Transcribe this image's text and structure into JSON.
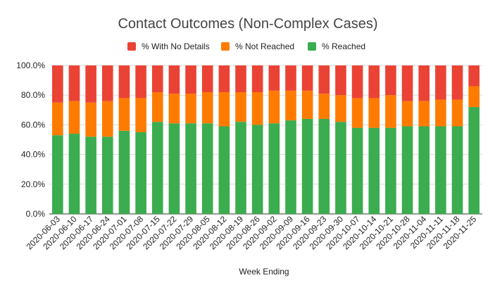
{
  "chart_data": {
    "type": "bar",
    "stacked": true,
    "title": "Contact Outcomes (Non-Complex Cases)",
    "xlabel": "Week Ending",
    "ylabel": "",
    "ylim": [
      0,
      100
    ],
    "yticks": [
      0,
      20,
      40,
      60,
      80,
      100
    ],
    "ytick_labels": [
      "0.0%",
      "20.0%",
      "40.0%",
      "60.0%",
      "80.0%",
      "100.0%"
    ],
    "grid": true,
    "legend_position": "top",
    "categories": [
      "2020-06-03",
      "2020-06-10",
      "2020-06-17",
      "2020-06-24",
      "2020-07-01",
      "2020-07-08",
      "2020-07-15",
      "2020-07-22",
      "2020-07-29",
      "2020-08-05",
      "2020-08-12",
      "2020-08-19",
      "2020-08-26",
      "2020-09-02",
      "2020-09-09",
      "2020-09-16",
      "2020-09-23",
      "2020-09-30",
      "2020-10-07",
      "2020-10-14",
      "2020-10-21",
      "2020-10-28",
      "2020-11-04",
      "2020-11-11",
      "2020-11-18",
      "2020-11-25"
    ],
    "series": [
      {
        "name": "% Reached",
        "color": "#3bac4f",
        "values": [
          53,
          54,
          52,
          52,
          56,
          55,
          62,
          61,
          61,
          61,
          59,
          62,
          60,
          61,
          63,
          64,
          64,
          62,
          58,
          58,
          58,
          59,
          59,
          59,
          59,
          72
        ]
      },
      {
        "name": "% Not Reached",
        "color": "#ff7b00",
        "values": [
          22,
          22,
          23,
          24,
          22,
          23,
          20,
          20,
          20,
          21,
          23,
          20,
          22,
          22,
          20,
          19,
          17,
          18,
          20,
          20,
          22,
          17,
          17,
          18,
          18,
          14
        ]
      },
      {
        "name": "% With No Details",
        "color": "#ea4335",
        "values": [
          25,
          24,
          25,
          24,
          22,
          22,
          18,
          19,
          19,
          18,
          18,
          18,
          18,
          17,
          17,
          17,
          19,
          20,
          22,
          22,
          20,
          24,
          24,
          23,
          23,
          14
        ]
      }
    ],
    "legend_order": [
      "% With No Details",
      "% Not Reached",
      "% Reached"
    ]
  }
}
